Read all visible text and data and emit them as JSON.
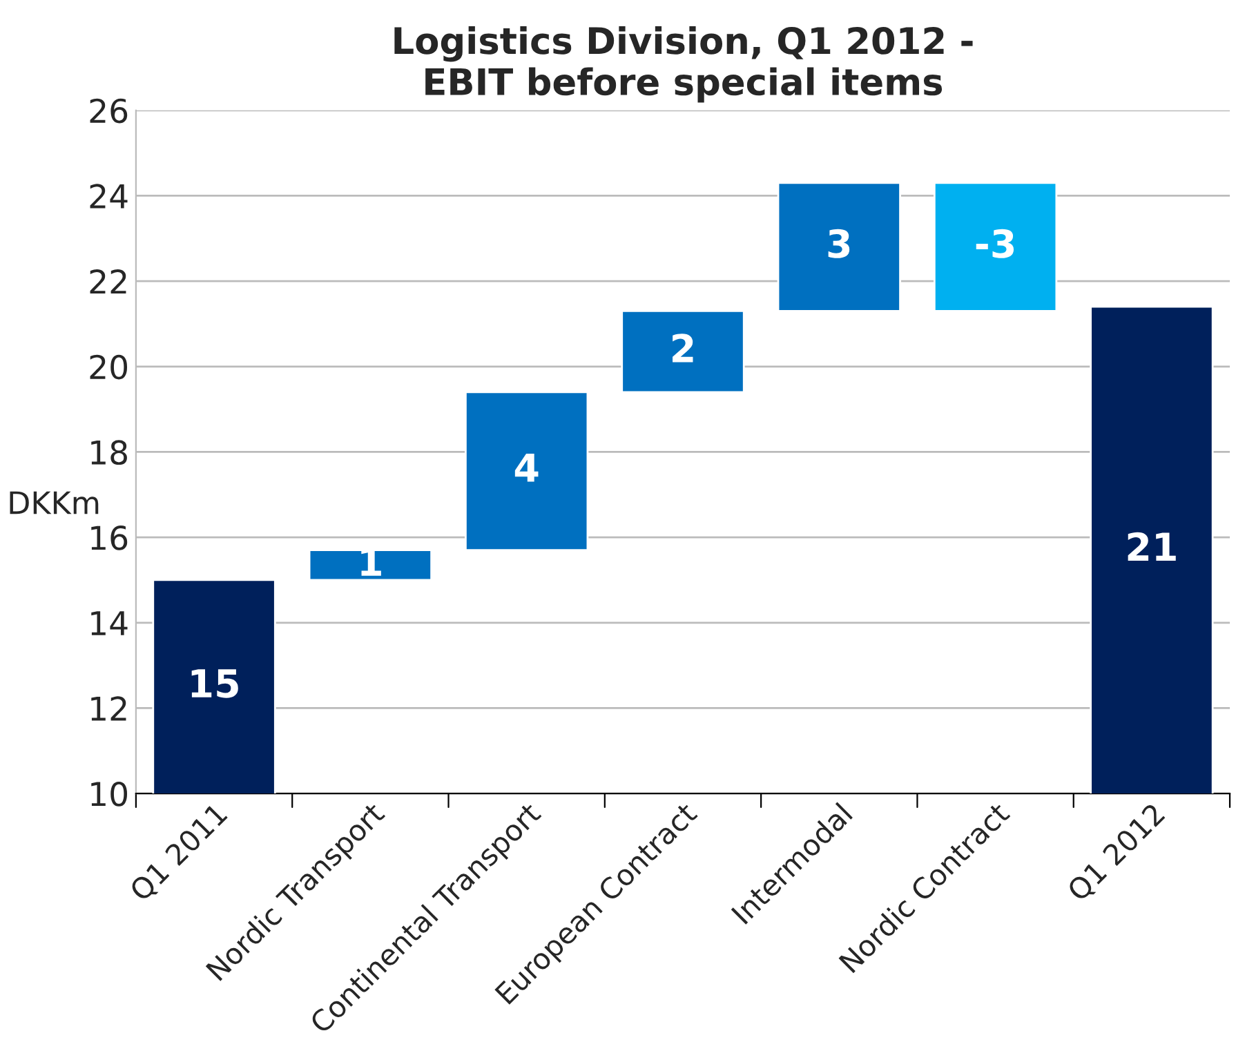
{
  "chart_data": {
    "type": "bar",
    "title": "Logistics Division, Q1 2012 -\nEBIT before special items",
    "ylabel": "DKKm",
    "categories": [
      "Q1 2011",
      "Nordic Transport",
      "Continental Transport",
      "European Contract",
      "Intermodal",
      "Nordic Contract",
      "Q1 2012"
    ],
    "values": [
      15,
      0.7,
      3.7,
      1.9,
      3.0,
      -3.0,
      21.4
    ],
    "base": [
      0,
      15,
      15.7,
      19.4,
      21.3,
      24.3,
      0
    ],
    "colors": [
      "#00205b",
      "#0070c0",
      "#0070c0",
      "#0070c0",
      "#0070c0",
      "#00b0f0",
      "#00205b"
    ],
    "value_labels": [
      "15",
      "1",
      "4",
      "2",
      "3",
      "-3",
      "21"
    ],
    "ylim": [
      10,
      26
    ],
    "yticks": [
      10,
      12,
      14,
      16,
      18,
      20,
      22,
      24,
      26
    ],
    "grid": "y"
  }
}
